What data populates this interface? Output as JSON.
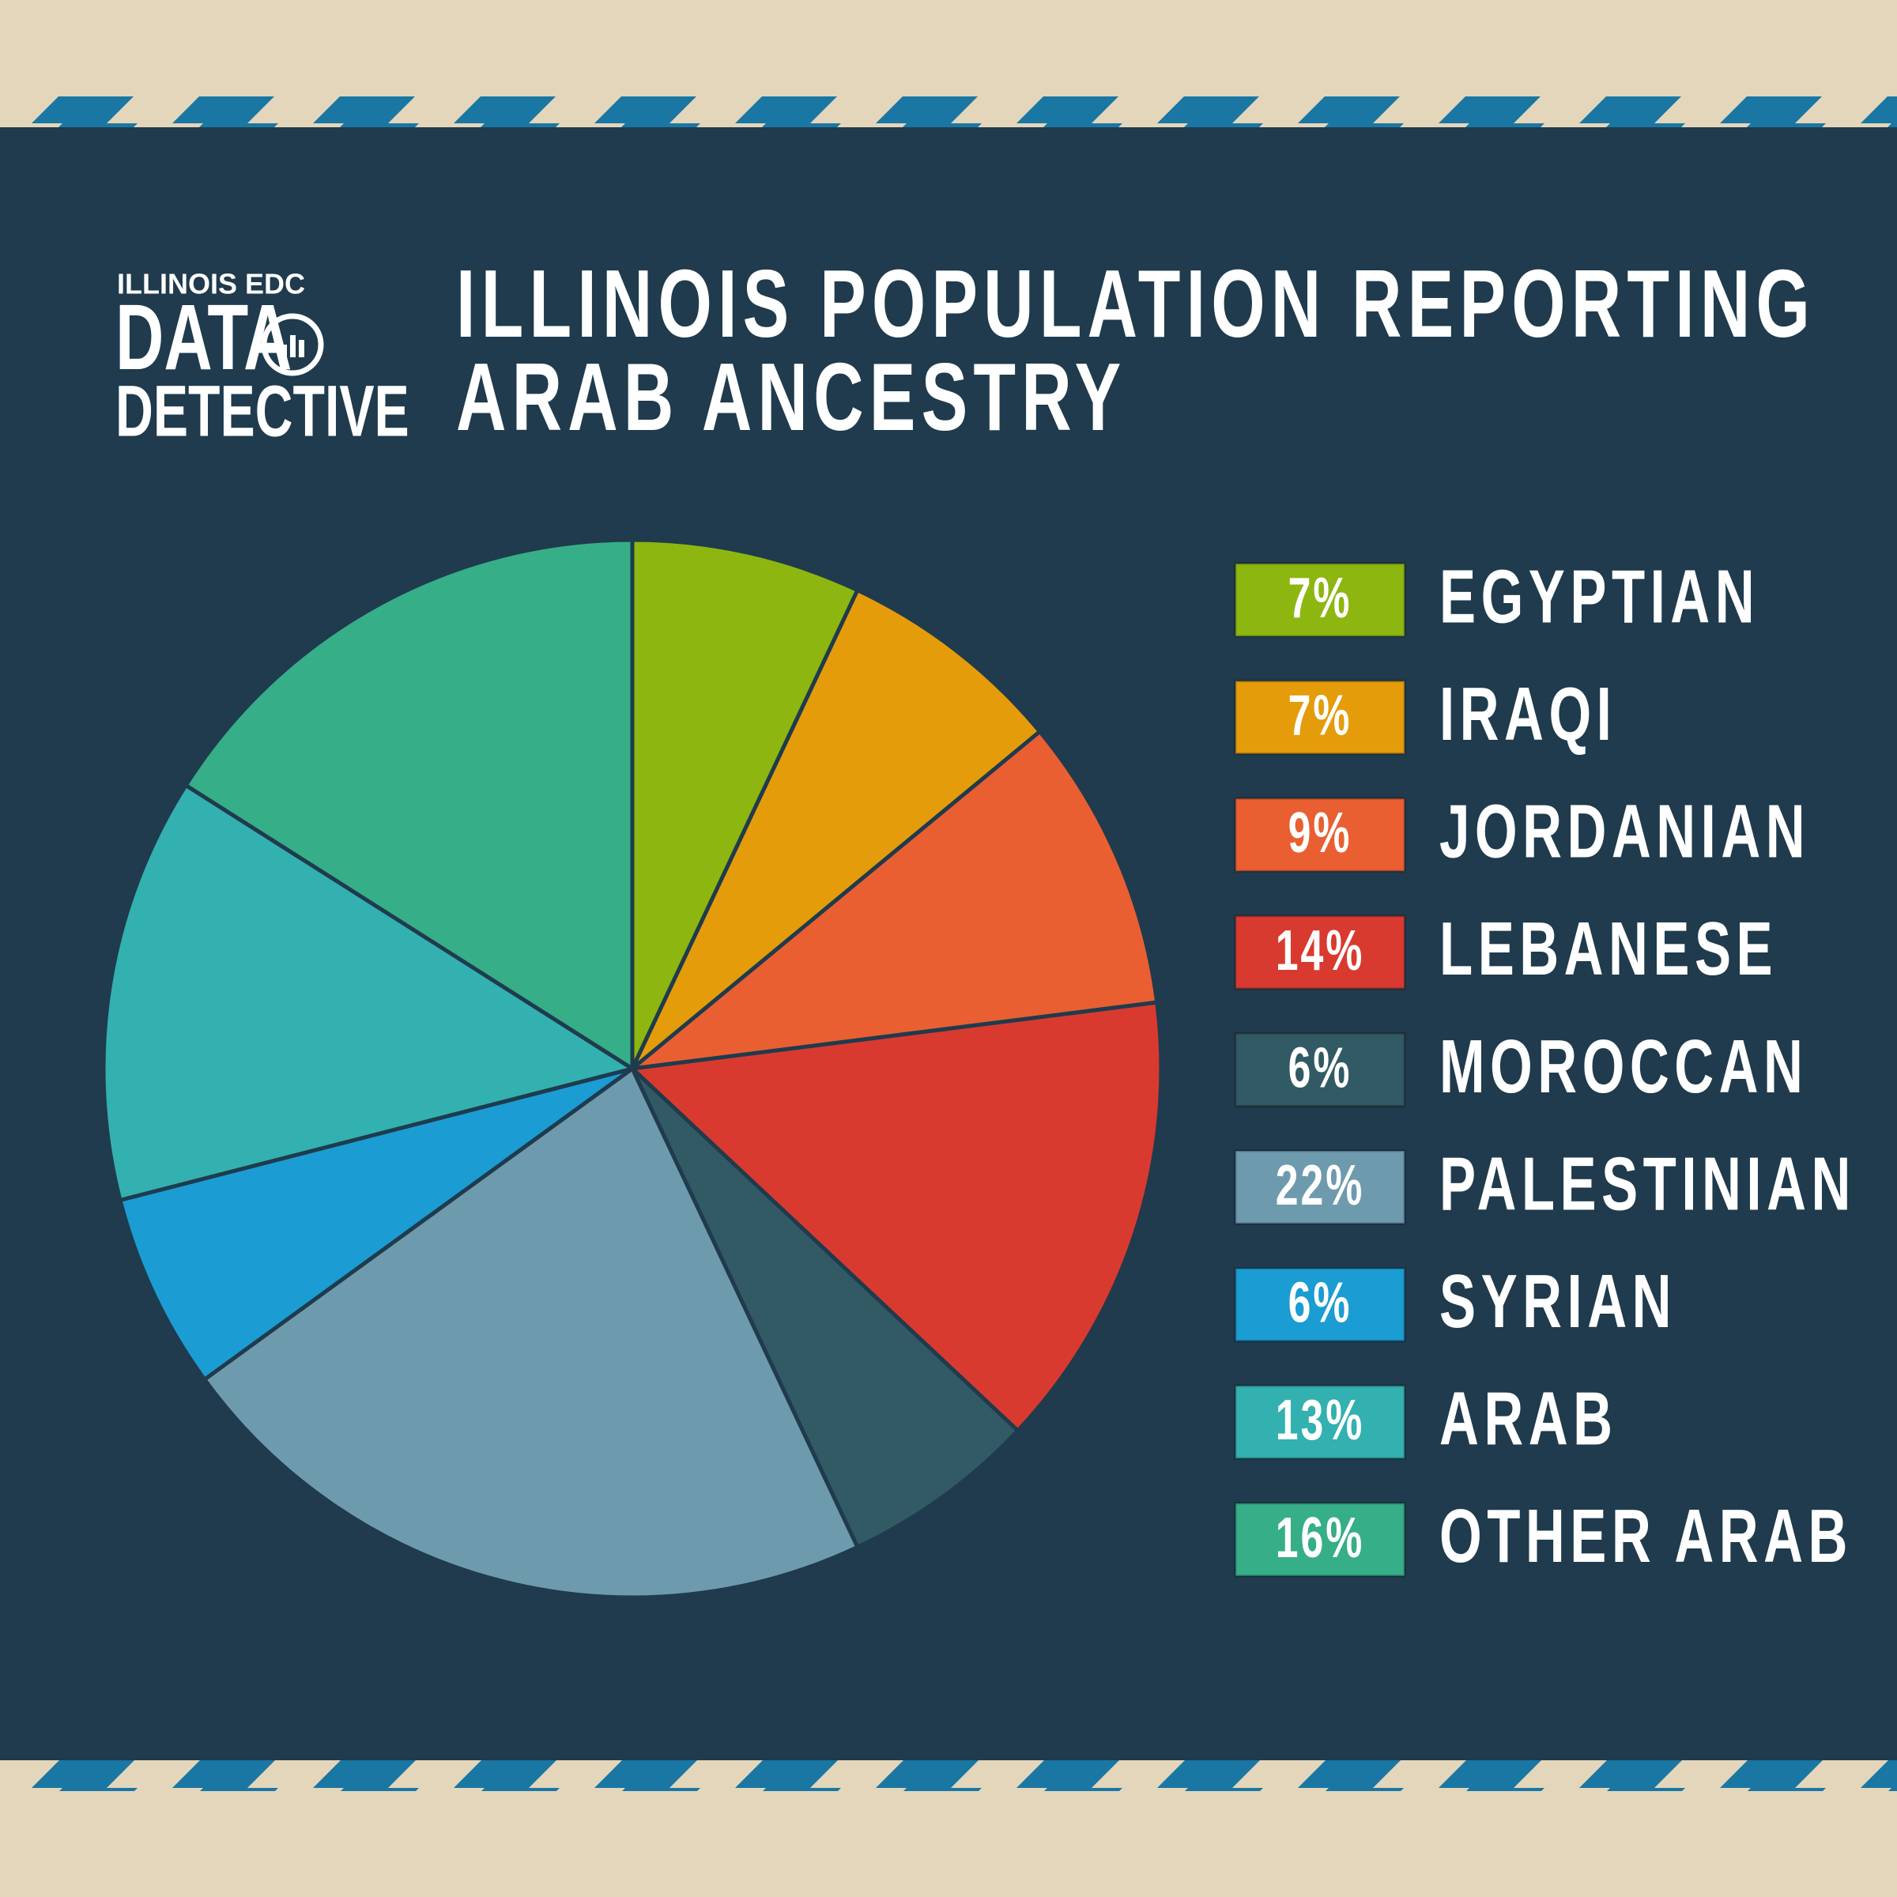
{
  "logo": {
    "line1": "ILLINOIS EDC",
    "line2": "DATA",
    "line3": "DETECTIVE"
  },
  "chart_data": {
    "type": "pie",
    "title": "ILLINOIS POPULATION REPORTING\nARAB ANCESTRY",
    "categories": [
      "EGYPTIAN",
      "IRAQI",
      "JORDANIAN",
      "LEBANESE",
      "MOROCCAN",
      "PALESTINIAN",
      "SYRIAN",
      "ARAB",
      "OTHER ARAB"
    ],
    "values": [
      7,
      7,
      9,
      14,
      6,
      22,
      6,
      13,
      16
    ],
    "value_labels": [
      "7%",
      "7%",
      "9%",
      "14%",
      "6%",
      "22%",
      "6%",
      "13%",
      "16%"
    ],
    "colors": [
      "#8db610",
      "#e59c0b",
      "#e95f32",
      "#d93a30",
      "#325a64",
      "#6e9aae",
      "#1b9cd3",
      "#33b0b0",
      "#36ae88"
    ]
  }
}
